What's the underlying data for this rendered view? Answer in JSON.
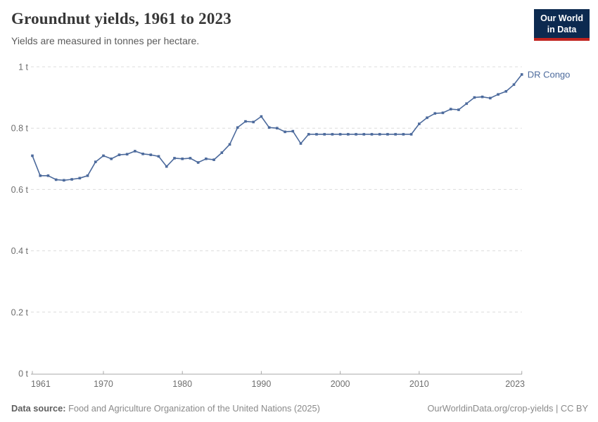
{
  "header": {
    "title": "Groundnut yields, 1961 to 2023",
    "subtitle": "Yields are measured in tonnes per hectare.",
    "logo": {
      "line1": "Our World",
      "line2": "in Data",
      "bg_color": "#0c2a50",
      "accent_color": "#c0231f"
    }
  },
  "chart_data": {
    "type": "line",
    "title": "Groundnut yields, 1961 to 2023",
    "ylabel": "tonnes per hectare",
    "xlabel": "",
    "grid": true,
    "legend_position": "end-of-line",
    "xlim": [
      1961,
      2023
    ],
    "ylim": [
      0,
      1
    ],
    "x_ticks": [
      1961,
      1970,
      1980,
      1990,
      2000,
      2010,
      2023
    ],
    "y_ticks": [
      {
        "value": 0,
        "label": "0 t"
      },
      {
        "value": 0.2,
        "label": "0.2 t"
      },
      {
        "value": 0.4,
        "label": "0.4 t"
      },
      {
        "value": 0.6,
        "label": "0.6 t"
      },
      {
        "value": 0.8,
        "label": "0.8 t"
      },
      {
        "value": 1,
        "label": "1 t"
      }
    ],
    "series": [
      {
        "name": "DR Congo",
        "color": "#4c6a9c",
        "x": [
          1961,
          1962,
          1963,
          1964,
          1965,
          1966,
          1967,
          1968,
          1969,
          1970,
          1971,
          1972,
          1973,
          1974,
          1975,
          1976,
          1977,
          1978,
          1979,
          1980,
          1981,
          1982,
          1983,
          1984,
          1985,
          1986,
          1987,
          1988,
          1989,
          1990,
          1991,
          1992,
          1993,
          1994,
          1995,
          1996,
          1997,
          1998,
          1999,
          2000,
          2001,
          2002,
          2003,
          2004,
          2005,
          2006,
          2007,
          2008,
          2009,
          2010,
          2011,
          2012,
          2013,
          2014,
          2015,
          2016,
          2017,
          2018,
          2019,
          2020,
          2021,
          2022,
          2023
        ],
        "values": [
          0.71,
          0.645,
          0.645,
          0.632,
          0.63,
          0.633,
          0.637,
          0.645,
          0.69,
          0.71,
          0.7,
          0.713,
          0.715,
          0.725,
          0.716,
          0.713,
          0.708,
          0.675,
          0.702,
          0.7,
          0.702,
          0.688,
          0.7,
          0.697,
          0.72,
          0.747,
          0.802,
          0.822,
          0.82,
          0.838,
          0.802,
          0.8,
          0.788,
          0.79,
          0.75,
          0.78,
          0.78,
          0.78,
          0.78,
          0.78,
          0.78,
          0.78,
          0.78,
          0.78,
          0.78,
          0.78,
          0.78,
          0.78,
          0.78,
          0.814,
          0.834,
          0.848,
          0.85,
          0.862,
          0.86,
          0.88,
          0.9,
          0.902,
          0.898,
          0.91,
          0.92,
          0.942,
          0.975
        ]
      }
    ],
    "style": {
      "grid_color": "#dcdcdc",
      "axis_color": "#a8a8a8",
      "tick_label_color": "#6e6e6e"
    }
  },
  "footer": {
    "source_label": "Data source:",
    "source_text": " Food and Agriculture Organization of the United Nations (2025)",
    "license_text": "OurWorldinData.org/crop-yields | CC BY"
  }
}
